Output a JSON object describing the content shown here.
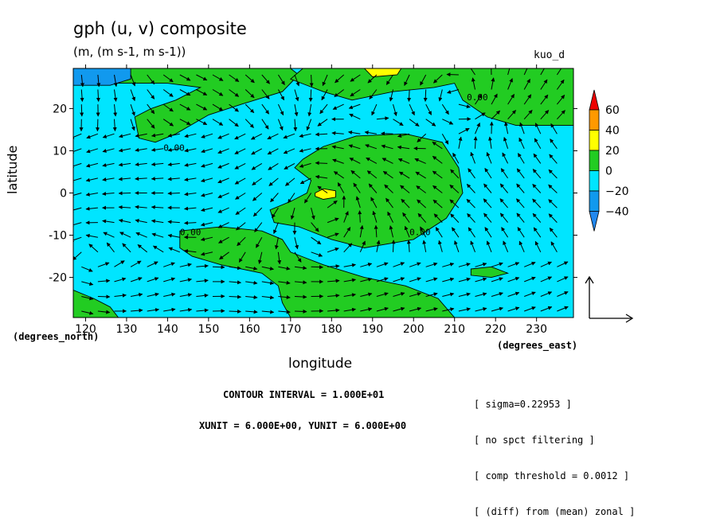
{
  "header": {
    "title": "gph (u, v) composite",
    "units": "(m, (m s-1, m s-1))",
    "dataset": "kuo_d"
  },
  "axes": {
    "ylabel": "latitude",
    "xlabel": "longitude",
    "y_units": "(degrees_north)",
    "x_units": "(degrees_east)"
  },
  "footer": {
    "contour_interval": "CONTOUR INTERVAL = 1.000E+01",
    "vector_units": "XUNIT = 6.000E+00, YUNIT = 6.000E+00"
  },
  "notes": [
    "[ sigma=0.22953 ]",
    "[ no spct filtering ]",
    "[ comp threshold = 0.0012 ]",
    "[ (diff) from (mean) zonal ]"
  ],
  "colors": {
    "below_minus40": "#2288ee",
    "minus40_minus20": "#1199ee",
    "minus20_0": "#00e5ff",
    "zero_20": "#22cc22",
    "twenty_40": "#ffff00",
    "forty_60": "#ff9900",
    "above_60": "#ee0000"
  },
  "chart_data": {
    "type": "contour_filled_with_vectors",
    "xlim": [
      117,
      239
    ],
    "ylim": [
      -29.5,
      29.5
    ],
    "x_ticks": [
      120,
      130,
      140,
      150,
      160,
      170,
      180,
      190,
      200,
      210,
      220,
      230
    ],
    "y_ticks": [
      -20,
      -10,
      0,
      10,
      20
    ],
    "colorbar": {
      "levels": [
        -40,
        -20,
        0,
        20,
        40,
        60
      ],
      "labels": [
        "60",
        "40",
        "20",
        "0",
        "−20",
        "−40"
      ]
    },
    "contour_labels": [
      {
        "x": 139,
        "y": 10,
        "text": "0.00"
      },
      {
        "x": 213,
        "y": 22,
        "text": "0.00"
      },
      {
        "x": 143,
        "y": -10,
        "text": "0.00"
      },
      {
        "x": 199,
        "y": -10,
        "text": "0.00"
      }
    ],
    "regions": [
      {
        "name": "north-band",
        "level": "0-20",
        "points": [
          [
            117,
            29.5
          ],
          [
            170,
            29.5
          ],
          [
            172,
            28
          ],
          [
            168,
            24
          ],
          [
            158,
            21
          ],
          [
            150,
            18.5
          ],
          [
            142,
            14
          ],
          [
            137,
            12
          ],
          [
            133,
            13
          ],
          [
            132,
            18
          ],
          [
            136,
            20
          ],
          [
            142,
            22
          ],
          [
            148,
            25
          ],
          [
            140,
            26
          ],
          [
            128,
            26
          ],
          [
            117,
            26
          ]
        ]
      },
      {
        "name": "north-band-right",
        "level": "0-20",
        "points": [
          [
            198,
            29.5
          ],
          [
            239,
            29.5
          ],
          [
            239,
            16
          ],
          [
            225,
            16
          ],
          [
            218,
            18
          ],
          [
            212,
            22
          ],
          [
            210,
            26
          ],
          [
            205,
            25
          ],
          [
            195,
            24
          ],
          [
            185,
            22
          ],
          [
            178,
            24
          ],
          [
            170,
            27
          ],
          [
            173,
            29.5
          ]
        ]
      },
      {
        "name": "central-blob",
        "level": "0-20",
        "points": [
          [
            173,
            8
          ],
          [
            178,
            11
          ],
          [
            186,
            13.5
          ],
          [
            198,
            14
          ],
          [
            207,
            12
          ],
          [
            211,
            6
          ],
          [
            212,
            0
          ],
          [
            208,
            -6
          ],
          [
            200,
            -11
          ],
          [
            188,
            -13
          ],
          [
            180,
            -11
          ],
          [
            172,
            -8
          ],
          [
            166,
            -7
          ],
          [
            165,
            -4
          ],
          [
            170,
            -2
          ],
          [
            174,
            0
          ],
          [
            175,
            3
          ],
          [
            171,
            6
          ]
        ]
      },
      {
        "name": "south-band",
        "level": "0-20",
        "points": [
          [
            143,
            -9
          ],
          [
            153,
            -8
          ],
          [
            163,
            -9
          ],
          [
            168,
            -11
          ],
          [
            170,
            -14
          ],
          [
            178,
            -17
          ],
          [
            188,
            -20
          ],
          [
            198,
            -22
          ],
          [
            206,
            -25
          ],
          [
            210,
            -29.5
          ],
          [
            170,
            -29.5
          ],
          [
            168,
            -26
          ],
          [
            167,
            -22
          ],
          [
            163,
            -19
          ],
          [
            153,
            -17
          ],
          [
            146,
            -15
          ],
          [
            143,
            -13
          ]
        ]
      },
      {
        "name": "south-left-strip",
        "level": "0-20",
        "points": [
          [
            117,
            -23
          ],
          [
            122,
            -25
          ],
          [
            126,
            -27
          ],
          [
            128,
            -29.5
          ],
          [
            117,
            -29.5
          ]
        ]
      },
      {
        "name": "south-right-islet",
        "level": "0-20",
        "points": [
          [
            214,
            -18
          ],
          [
            219,
            -17.5
          ],
          [
            223,
            -19
          ],
          [
            219,
            -20
          ],
          [
            214,
            -19.5
          ]
        ]
      },
      {
        "name": "top-left-low",
        "level": "-40--20",
        "points": [
          [
            117,
            29.5
          ],
          [
            131,
            29.5
          ],
          [
            131,
            27
          ],
          [
            126,
            25.5
          ],
          [
            117,
            25.5
          ]
        ]
      },
      {
        "name": "top-yellow",
        "level": "20-40",
        "points": [
          [
            188,
            29.5
          ],
          [
            197,
            29.5
          ],
          [
            196,
            28
          ],
          [
            190,
            27.5
          ]
        ]
      },
      {
        "name": "center-yellow",
        "level": "20-40",
        "points": [
          [
            176,
            0
          ],
          [
            178,
            1
          ],
          [
            181,
            0.5
          ],
          [
            181,
            -1
          ],
          [
            178,
            -1.5
          ],
          [
            176,
            -0.8
          ]
        ]
      }
    ],
    "vector_grid": {
      "x_step": 4,
      "y_step": 3.5,
      "vortex_centers": [
        [
          178,
          0
        ],
        [
          212,
          22
        ],
        [
          120,
          -15
        ]
      ]
    }
  }
}
